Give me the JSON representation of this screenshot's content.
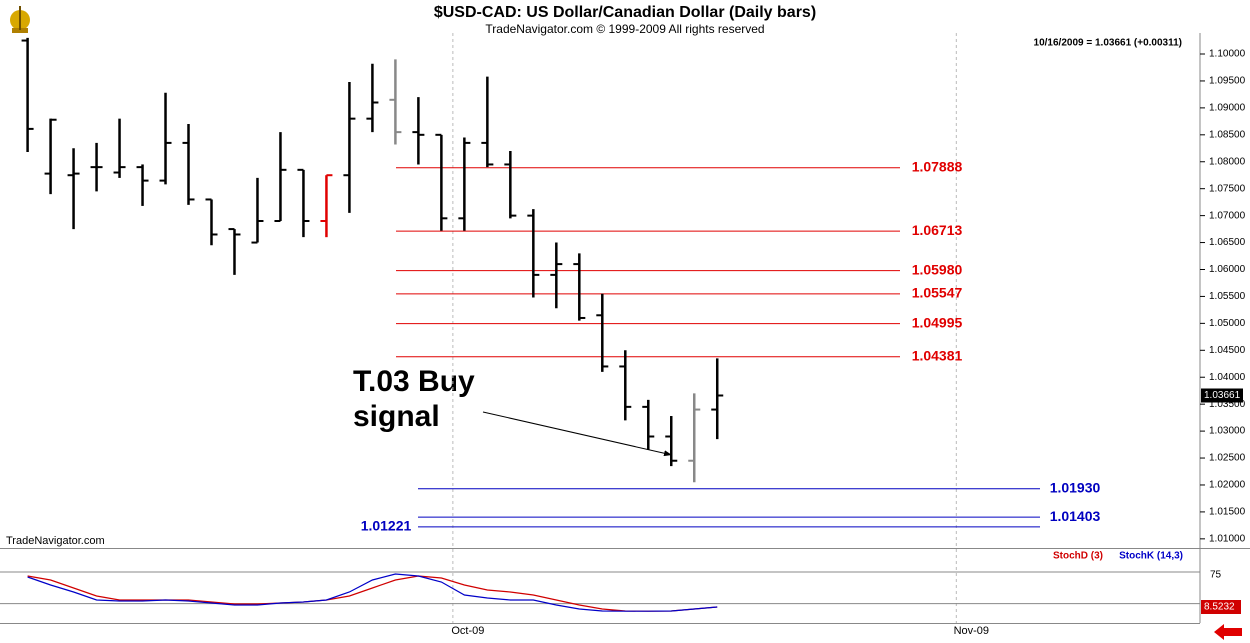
{
  "chart_data": [
    {
      "type": "ohlc",
      "title": "$USD-CAD:  US Dollar/Canadian Dollar  (Daily bars)",
      "subtitle": "TradeNavigator.com © 1999-2009 All rights reserved",
      "quote": "10/16/2009 = 1.03661 (+0.00311)",
      "watermark": "TradeNavigator.com",
      "annotation": [
        "T.03 Buy",
        "signal"
      ],
      "categories": [
        null,
        null,
        null,
        null,
        null,
        null,
        null,
        null,
        null,
        null,
        null,
        null,
        null,
        null,
        null,
        null,
        null,
        null,
        null,
        null,
        null,
        null,
        null,
        null,
        null,
        null,
        null,
        null,
        null,
        null,
        null
      ],
      "open": [
        1.1025,
        1.0778,
        1.0775,
        1.079,
        1.078,
        1.079,
        1.0765,
        1.0835,
        1.073,
        1.0675,
        1.065,
        1.069,
        1.0785,
        1.069,
        1.0775,
        1.088,
        1.0915,
        1.0855,
        1.085,
        1.0695,
        1.0835,
        1.0795,
        1.07,
        1.059,
        1.061,
        1.0515,
        1.042,
        1.0345,
        1.029,
        1.0245,
        1.034
      ],
      "high": [
        1.103,
        1.088,
        1.0825,
        1.0835,
        1.088,
        1.0795,
        1.0928,
        1.087,
        1.073,
        1.0675,
        1.077,
        1.0855,
        1.0785,
        1.0775,
        1.0948,
        1.0982,
        1.099,
        1.092,
        1.085,
        1.0845,
        1.0958,
        1.082,
        1.0712,
        1.065,
        1.063,
        1.0555,
        1.045,
        1.0358,
        1.0328,
        1.037,
        1.0435
      ],
      "low": [
        1.0818,
        1.074,
        1.0675,
        1.0745,
        1.077,
        1.0718,
        1.0758,
        1.072,
        1.0645,
        1.059,
        1.065,
        1.069,
        1.066,
        1.066,
        1.0705,
        1.0855,
        1.0832,
        1.0795,
        1.0672,
        1.0672,
        1.079,
        1.0695,
        1.0548,
        1.0528,
        1.0505,
        1.041,
        1.032,
        1.0265,
        1.0235,
        1.0205,
        1.0285
      ],
      "close": [
        1.0861,
        1.0878,
        1.0778,
        1.079,
        1.079,
        1.0765,
        1.0835,
        1.073,
        1.0665,
        1.0665,
        1.069,
        1.0785,
        1.069,
        1.0775,
        1.088,
        1.091,
        1.0855,
        1.085,
        1.0695,
        1.0835,
        1.0795,
        1.07,
        1.059,
        1.061,
        1.051,
        1.042,
        1.0345,
        1.029,
        1.0245,
        1.034,
        1.03661
      ],
      "bar_colors": [
        "#000",
        "#000",
        "#000",
        "#000",
        "#000",
        "#000",
        "#000",
        "#000",
        "#000",
        "#000",
        "#000",
        "#000",
        "#000",
        "#e00000",
        "#000",
        "#000",
        "#888",
        "#000",
        "#000",
        "#000",
        "#000",
        "#000",
        "#000",
        "#000",
        "#000",
        "#000",
        "#000",
        "#000",
        "#000",
        "#888",
        "#000"
      ],
      "xlim": [
        -1.2,
        51
      ],
      "ylim": [
        1.0083,
        1.1039
      ],
      "yticks": [
        {
          "value": 1.01,
          "label": "1.01000"
        },
        {
          "value": 1.015,
          "label": "1.01500"
        },
        {
          "value": 1.02,
          "label": "1.02000"
        },
        {
          "value": 1.025,
          "label": "1.02500"
        },
        {
          "value": 1.03,
          "label": "1.03000"
        },
        {
          "value": 1.035,
          "label": "1.03500"
        },
        {
          "value": 1.04,
          "label": "1.04000"
        },
        {
          "value": 1.045,
          "label": "1.04500"
        },
        {
          "value": 1.05,
          "label": "1.05000"
        },
        {
          "value": 1.055,
          "label": "1.05500"
        },
        {
          "value": 1.06,
          "label": "1.06000"
        },
        {
          "value": 1.065,
          "label": "1.06500"
        },
        {
          "value": 1.07,
          "label": "1.07000"
        },
        {
          "value": 1.075,
          "label": "1.07500"
        },
        {
          "value": 1.08,
          "label": "1.08000"
        },
        {
          "value": 1.085,
          "label": "1.08500"
        },
        {
          "value": 1.09,
          "label": "1.09000"
        },
        {
          "value": 1.095,
          "label": "1.09500"
        },
        {
          "value": 1.1,
          "label": "1.10000"
        }
      ],
      "levels": [
        {
          "value": 1.07888,
          "label": "1.07888",
          "color": "#e00000"
        },
        {
          "value": 1.06713,
          "label": "1.06713",
          "color": "#e00000"
        },
        {
          "value": 1.0598,
          "label": "1.05980",
          "color": "#e00000"
        },
        {
          "value": 1.05547,
          "label": "1.05547",
          "color": "#e00000"
        },
        {
          "value": 1.04995,
          "label": "1.04995",
          "color": "#e00000"
        },
        {
          "value": 1.04381,
          "label": "1.04381",
          "color": "#e00000"
        },
        {
          "value": 1.0193,
          "label": "1.01930",
          "color": "#0000c0"
        },
        {
          "value": 1.01403,
          "label": "1.01403",
          "color": "#0000c0"
        },
        {
          "value": 1.01221,
          "label": "1.01221",
          "color": "#0000c0"
        }
      ]
    },
    {
      "type": "line",
      "series": [
        {
          "name": "StochD (3)",
          "color": "#d00000",
          "values": [
            67.5,
            59.9,
            44.7,
            29.5,
            21.9,
            21.9,
            21.9,
            21.9,
            18.1,
            14.3,
            14.3,
            16.2,
            18.1,
            21.9,
            29.5,
            44.7,
            59.9,
            67.5,
            63.7,
            50.4,
            40.9,
            37.1,
            31.4,
            21.9,
            12.4,
            4.8,
            1.0,
            0.5,
            1.0,
            4.8,
            8.5232
          ]
        },
        {
          "name": "StochK (14,3)",
          "color": "#0000c8",
          "values": [
            65.6,
            50.4,
            37.1,
            21.9,
            20.0,
            20.0,
            21.9,
            20.0,
            16.2,
            12.4,
            12.4,
            16.2,
            18.1,
            21.9,
            37.1,
            59.9,
            71.3,
            67.5,
            56.1,
            31.4,
            25.7,
            21.9,
            21.9,
            12.4,
            4.8,
            1.0,
            0.5,
            0.5,
            1.0,
            4.8,
            8.6
          ]
        }
      ],
      "xlim": [
        -1.2,
        51
      ],
      "xticks": [
        {
          "value": 18.5,
          "label": "Oct-09"
        },
        {
          "value": 40.4,
          "label": "Nov-09"
        }
      ],
      "ylim": [
        -21.9,
        118.8
      ],
      "yticks": [
        75
      ],
      "reference_lines": [
        75,
        15
      ]
    }
  ]
}
